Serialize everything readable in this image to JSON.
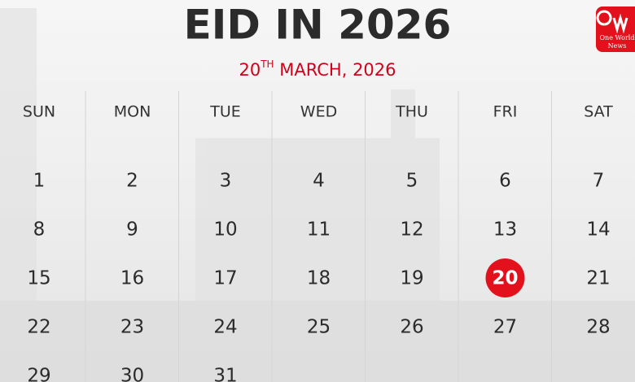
{
  "header": {
    "title": "EID IN 2026",
    "date": {
      "day": "20",
      "suffix": "TH",
      "rest": " MARCH, 2026"
    }
  },
  "logo": {
    "line1": "One World",
    "line2": "News"
  },
  "calendar": {
    "weekdays": [
      "SUN",
      "MON",
      "TUE",
      "WED",
      "THU",
      "FRI",
      "SAT"
    ],
    "weeks": [
      [
        1,
        2,
        3,
        4,
        5,
        6,
        7
      ],
      [
        8,
        9,
        10,
        11,
        12,
        13,
        14
      ],
      [
        15,
        16,
        17,
        18,
        19,
        {
          "day": 20,
          "highlight": true
        },
        21
      ],
      [
        22,
        23,
        24,
        25,
        26,
        27,
        28
      ],
      [
        29,
        30,
        31
      ]
    ]
  }
}
